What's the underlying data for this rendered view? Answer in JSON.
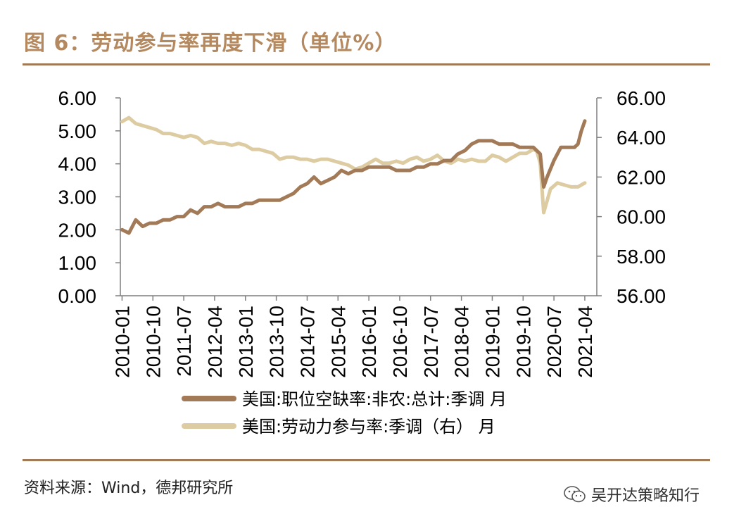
{
  "figure": {
    "title": "图 6：劳动参与率再度下滑（单位%）",
    "source": "资料来源：Wind，德邦研究所",
    "watermark": "吴开达策略知行"
  },
  "colors": {
    "title": "#b5895f",
    "rule": "#a27a57",
    "series_vacancy": "#a27a57",
    "series_participation": "#ddcba1"
  },
  "chart_data": {
    "type": "line",
    "x_ticks": [
      "2010-01",
      "2010-10",
      "2011-07",
      "2012-04",
      "2013-01",
      "2013-10",
      "2014-07",
      "2015-04",
      "2016-01",
      "2016-10",
      "2017-07",
      "2018-04",
      "2019-01",
      "2019-10",
      "2020-07",
      "2021-04"
    ],
    "y_left": {
      "ylim": [
        0,
        6
      ],
      "ticks": [
        "0.00",
        "1.00",
        "2.00",
        "3.00",
        "4.00",
        "5.00",
        "6.00"
      ]
    },
    "y_right": {
      "ylim": [
        56,
        66
      ],
      "ticks": [
        "56.00",
        "58.00",
        "60.00",
        "62.00",
        "64.00",
        "66.00"
      ]
    },
    "series": [
      {
        "name": "美国:职位空缺率:非农:总计:季调 月",
        "axis": "left",
        "points": [
          [
            "2010-01",
            2.0
          ],
          [
            "2010-03",
            1.9
          ],
          [
            "2010-05",
            2.3
          ],
          [
            "2010-07",
            2.1
          ],
          [
            "2010-09",
            2.2
          ],
          [
            "2010-11",
            2.2
          ],
          [
            "2011-01",
            2.3
          ],
          [
            "2011-03",
            2.3
          ],
          [
            "2011-05",
            2.4
          ],
          [
            "2011-07",
            2.4
          ],
          [
            "2011-09",
            2.6
          ],
          [
            "2011-11",
            2.5
          ],
          [
            "2012-01",
            2.7
          ],
          [
            "2012-03",
            2.7
          ],
          [
            "2012-05",
            2.8
          ],
          [
            "2012-07",
            2.7
          ],
          [
            "2012-09",
            2.7
          ],
          [
            "2012-11",
            2.7
          ],
          [
            "2013-01",
            2.8
          ],
          [
            "2013-03",
            2.8
          ],
          [
            "2013-05",
            2.9
          ],
          [
            "2013-07",
            2.9
          ],
          [
            "2013-09",
            2.9
          ],
          [
            "2013-11",
            2.9
          ],
          [
            "2014-01",
            3.0
          ],
          [
            "2014-03",
            3.1
          ],
          [
            "2014-05",
            3.3
          ],
          [
            "2014-07",
            3.4
          ],
          [
            "2014-09",
            3.6
          ],
          [
            "2014-11",
            3.4
          ],
          [
            "2015-01",
            3.5
          ],
          [
            "2015-03",
            3.6
          ],
          [
            "2015-05",
            3.8
          ],
          [
            "2015-07",
            3.7
          ],
          [
            "2015-09",
            3.8
          ],
          [
            "2015-11",
            3.8
          ],
          [
            "2016-01",
            3.9
          ],
          [
            "2016-03",
            3.9
          ],
          [
            "2016-05",
            3.9
          ],
          [
            "2016-07",
            3.9
          ],
          [
            "2016-09",
            3.8
          ],
          [
            "2016-11",
            3.8
          ],
          [
            "2017-01",
            3.8
          ],
          [
            "2017-03",
            3.9
          ],
          [
            "2017-05",
            3.9
          ],
          [
            "2017-07",
            4.0
          ],
          [
            "2017-09",
            4.0
          ],
          [
            "2017-11",
            4.1
          ],
          [
            "2018-01",
            4.1
          ],
          [
            "2018-03",
            4.3
          ],
          [
            "2018-05",
            4.4
          ],
          [
            "2018-07",
            4.6
          ],
          [
            "2018-09",
            4.7
          ],
          [
            "2018-11",
            4.7
          ],
          [
            "2019-01",
            4.7
          ],
          [
            "2019-03",
            4.6
          ],
          [
            "2019-05",
            4.6
          ],
          [
            "2019-07",
            4.6
          ],
          [
            "2019-09",
            4.5
          ],
          [
            "2019-11",
            4.5
          ],
          [
            "2020-01",
            4.5
          ],
          [
            "2020-02",
            4.4
          ],
          [
            "2020-03",
            4.3
          ],
          [
            "2020-04",
            3.3
          ],
          [
            "2020-05",
            3.6
          ],
          [
            "2020-07",
            4.1
          ],
          [
            "2020-09",
            4.5
          ],
          [
            "2020-11",
            4.5
          ],
          [
            "2021-01",
            4.5
          ],
          [
            "2021-02",
            4.6
          ],
          [
            "2021-03",
            5.0
          ],
          [
            "2021-04",
            5.3
          ]
        ]
      },
      {
        "name": "美国:劳动力参与率:季调（右） 月",
        "axis": "right",
        "points": [
          [
            "2010-01",
            64.8
          ],
          [
            "2010-03",
            65.0
          ],
          [
            "2010-05",
            64.7
          ],
          [
            "2010-07",
            64.6
          ],
          [
            "2010-09",
            64.5
          ],
          [
            "2010-11",
            64.4
          ],
          [
            "2011-01",
            64.2
          ],
          [
            "2011-03",
            64.2
          ],
          [
            "2011-05",
            64.1
          ],
          [
            "2011-07",
            64.0
          ],
          [
            "2011-09",
            64.1
          ],
          [
            "2011-11",
            64.0
          ],
          [
            "2012-01",
            63.7
          ],
          [
            "2012-03",
            63.8
          ],
          [
            "2012-05",
            63.7
          ],
          [
            "2012-07",
            63.7
          ],
          [
            "2012-09",
            63.6
          ],
          [
            "2012-11",
            63.7
          ],
          [
            "2013-01",
            63.6
          ],
          [
            "2013-03",
            63.4
          ],
          [
            "2013-05",
            63.4
          ],
          [
            "2013-07",
            63.3
          ],
          [
            "2013-09",
            63.2
          ],
          [
            "2013-11",
            62.9
          ],
          [
            "2014-01",
            63.0
          ],
          [
            "2014-03",
            63.0
          ],
          [
            "2014-05",
            62.9
          ],
          [
            "2014-07",
            62.9
          ],
          [
            "2014-09",
            62.8
          ],
          [
            "2014-11",
            62.9
          ],
          [
            "2015-01",
            62.9
          ],
          [
            "2015-03",
            62.8
          ],
          [
            "2015-05",
            62.7
          ],
          [
            "2015-07",
            62.6
          ],
          [
            "2015-09",
            62.4
          ],
          [
            "2015-11",
            62.5
          ],
          [
            "2016-01",
            62.7
          ],
          [
            "2016-03",
            62.9
          ],
          [
            "2016-05",
            62.7
          ],
          [
            "2016-07",
            62.7
          ],
          [
            "2016-09",
            62.8
          ],
          [
            "2016-11",
            62.7
          ],
          [
            "2017-01",
            62.9
          ],
          [
            "2017-03",
            63.0
          ],
          [
            "2017-05",
            62.8
          ],
          [
            "2017-07",
            62.9
          ],
          [
            "2017-09",
            63.1
          ],
          [
            "2017-11",
            62.8
          ],
          [
            "2018-01",
            62.7
          ],
          [
            "2018-03",
            62.9
          ],
          [
            "2018-05",
            62.8
          ],
          [
            "2018-07",
            62.9
          ],
          [
            "2018-09",
            62.8
          ],
          [
            "2018-11",
            62.8
          ],
          [
            "2019-01",
            63.1
          ],
          [
            "2019-03",
            63.0
          ],
          [
            "2019-05",
            62.8
          ],
          [
            "2019-07",
            63.0
          ],
          [
            "2019-09",
            63.2
          ],
          [
            "2019-11",
            63.2
          ],
          [
            "2020-01",
            63.4
          ],
          [
            "2020-02",
            63.3
          ],
          [
            "2020-03",
            62.7
          ],
          [
            "2020-04",
            60.2
          ],
          [
            "2020-05",
            60.8
          ],
          [
            "2020-06",
            61.4
          ],
          [
            "2020-08",
            61.7
          ],
          [
            "2020-10",
            61.6
          ],
          [
            "2020-12",
            61.5
          ],
          [
            "2021-02",
            61.5
          ],
          [
            "2021-03",
            61.6
          ],
          [
            "2021-04",
            61.7
          ]
        ]
      }
    ]
  }
}
